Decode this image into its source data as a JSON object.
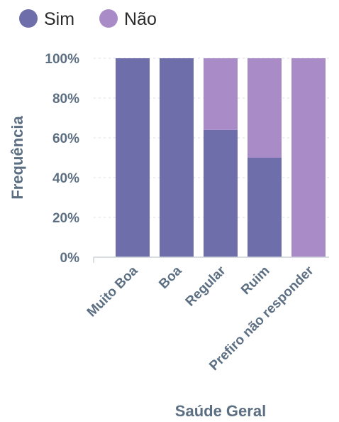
{
  "chart_data": {
    "type": "bar",
    "stacked": true,
    "percent": true,
    "categories": [
      "Muito Boa",
      "Boa",
      "Regular",
      "Ruim",
      "Prefiro não responder"
    ],
    "series": [
      {
        "name": "Sim",
        "color": "#6e6eab",
        "values": [
          100,
          100,
          64,
          50,
          0
        ]
      },
      {
        "name": "Não",
        "color": "#a98bc7",
        "values": [
          0,
          0,
          36,
          50,
          100
        ]
      }
    ],
    "xlabel": "Saúde Geral",
    "ylabel": "Frequência",
    "ylim": [
      0,
      100
    ],
    "yticks": [
      "0%",
      "20%",
      "40%",
      "60%",
      "80%",
      "100%"
    ],
    "grid": true,
    "legend_position": "top-left"
  }
}
